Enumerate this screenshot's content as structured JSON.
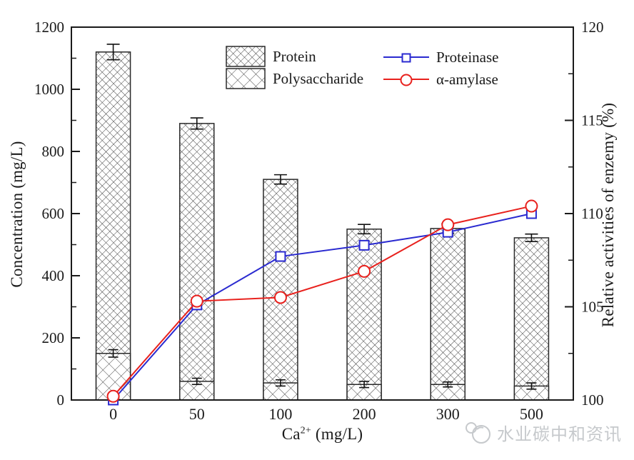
{
  "chart_data": {
    "type": "combo-bar-line",
    "x_axis": {
      "title_base": "Ca",
      "title_sup": "2+",
      "title_rest": " (mg/L)",
      "categories": [
        "0",
        "50",
        "100",
        "200",
        "300",
        "500"
      ]
    },
    "y_axis_left": {
      "title": "Concentration (mg/L)",
      "min": 0,
      "max": 1200,
      "major_step": 200,
      "minor_step": 100
    },
    "y_axis_right": {
      "title": "Relative activities of enzemy (%)",
      "min": 100,
      "max": 120,
      "major_step": 5,
      "minor_step": 2.5
    },
    "bar_series": [
      {
        "name": "Protein",
        "pattern": "fine-crosshatch",
        "values": [
          1120,
          890,
          710,
          550,
          552,
          522
        ],
        "errors": [
          25,
          18,
          15,
          15,
          15,
          12
        ]
      },
      {
        "name": "Polysaccharide",
        "pattern": "coarse-crosshatch",
        "values": [
          150,
          60,
          55,
          50,
          50,
          45
        ],
        "errors": [
          12,
          10,
          10,
          10,
          8,
          10
        ]
      }
    ],
    "line_series": [
      {
        "name": "Proteinase",
        "color": "#2a2ad0",
        "marker": "square",
        "values": [
          100.0,
          105.1,
          107.7,
          108.3,
          109.0,
          110.0
        ]
      },
      {
        "name": "α-amylase",
        "color": "#e8211d",
        "marker": "circle",
        "values": [
          100.2,
          105.3,
          105.5,
          106.9,
          109.4,
          110.4
        ]
      }
    ],
    "grid": "off",
    "legend_position": "top-center-inside",
    "frame_color": "#1a1a1a",
    "hatch_color": "#3f3f3f"
  },
  "watermark": {
    "text": "水业碳中和资讯"
  }
}
